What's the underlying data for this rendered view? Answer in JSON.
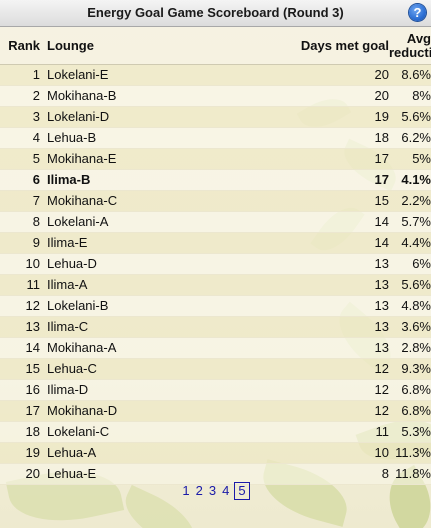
{
  "title": "Energy Goal Game Scoreboard (Round 3)",
  "help_label": "?",
  "columns": {
    "rank": "Rank",
    "lounge": "Lounge",
    "days": "Days met goal",
    "avg_line1": "Avg",
    "avg_line2": "reduction"
  },
  "rows": [
    {
      "rank": "1",
      "lounge": "Lokelani-E",
      "days": "20",
      "avg": "8.6%"
    },
    {
      "rank": "2",
      "lounge": "Mokihana-B",
      "days": "20",
      "avg": "8%"
    },
    {
      "rank": "3",
      "lounge": "Lokelani-D",
      "days": "19",
      "avg": "5.6%"
    },
    {
      "rank": "4",
      "lounge": "Lehua-B",
      "days": "18",
      "avg": "6.2%"
    },
    {
      "rank": "5",
      "lounge": "Mokihana-E",
      "days": "17",
      "avg": "5%"
    },
    {
      "rank": "6",
      "lounge": "Ilima-B",
      "days": "17",
      "avg": "4.1%",
      "highlight": true
    },
    {
      "rank": "7",
      "lounge": "Mokihana-C",
      "days": "15",
      "avg": "2.2%"
    },
    {
      "rank": "8",
      "lounge": "Lokelani-A",
      "days": "14",
      "avg": "5.7%"
    },
    {
      "rank": "9",
      "lounge": "Ilima-E",
      "days": "14",
      "avg": "4.4%"
    },
    {
      "rank": "10",
      "lounge": "Lehua-D",
      "days": "13",
      "avg": "6%"
    },
    {
      "rank": "11",
      "lounge": "Ilima-A",
      "days": "13",
      "avg": "5.6%"
    },
    {
      "rank": "12",
      "lounge": "Lokelani-B",
      "days": "13",
      "avg": "4.8%"
    },
    {
      "rank": "13",
      "lounge": "Ilima-C",
      "days": "13",
      "avg": "3.6%"
    },
    {
      "rank": "14",
      "lounge": "Mokihana-A",
      "days": "13",
      "avg": "2.8%"
    },
    {
      "rank": "15",
      "lounge": "Lehua-C",
      "days": "12",
      "avg": "9.3%"
    },
    {
      "rank": "16",
      "lounge": "Ilima-D",
      "days": "12",
      "avg": "6.8%"
    },
    {
      "rank": "17",
      "lounge": "Mokihana-D",
      "days": "12",
      "avg": "6.8%"
    },
    {
      "rank": "18",
      "lounge": "Lokelani-C",
      "days": "11",
      "avg": "5.3%"
    },
    {
      "rank": "19",
      "lounge": "Lehua-A",
      "days": "10",
      "avg": "11.3%"
    },
    {
      "rank": "20",
      "lounge": "Lehua-E",
      "days": "8",
      "avg": "11.8%"
    }
  ],
  "pagination": {
    "pages": [
      "1",
      "2",
      "3",
      "4",
      "5"
    ],
    "current": "5"
  },
  "colors": {
    "link": "#1a1aa8",
    "help_icon": "#2c6fd4",
    "row_shade": "#eee8c4"
  },
  "icons": {
    "help": "help-icon"
  }
}
